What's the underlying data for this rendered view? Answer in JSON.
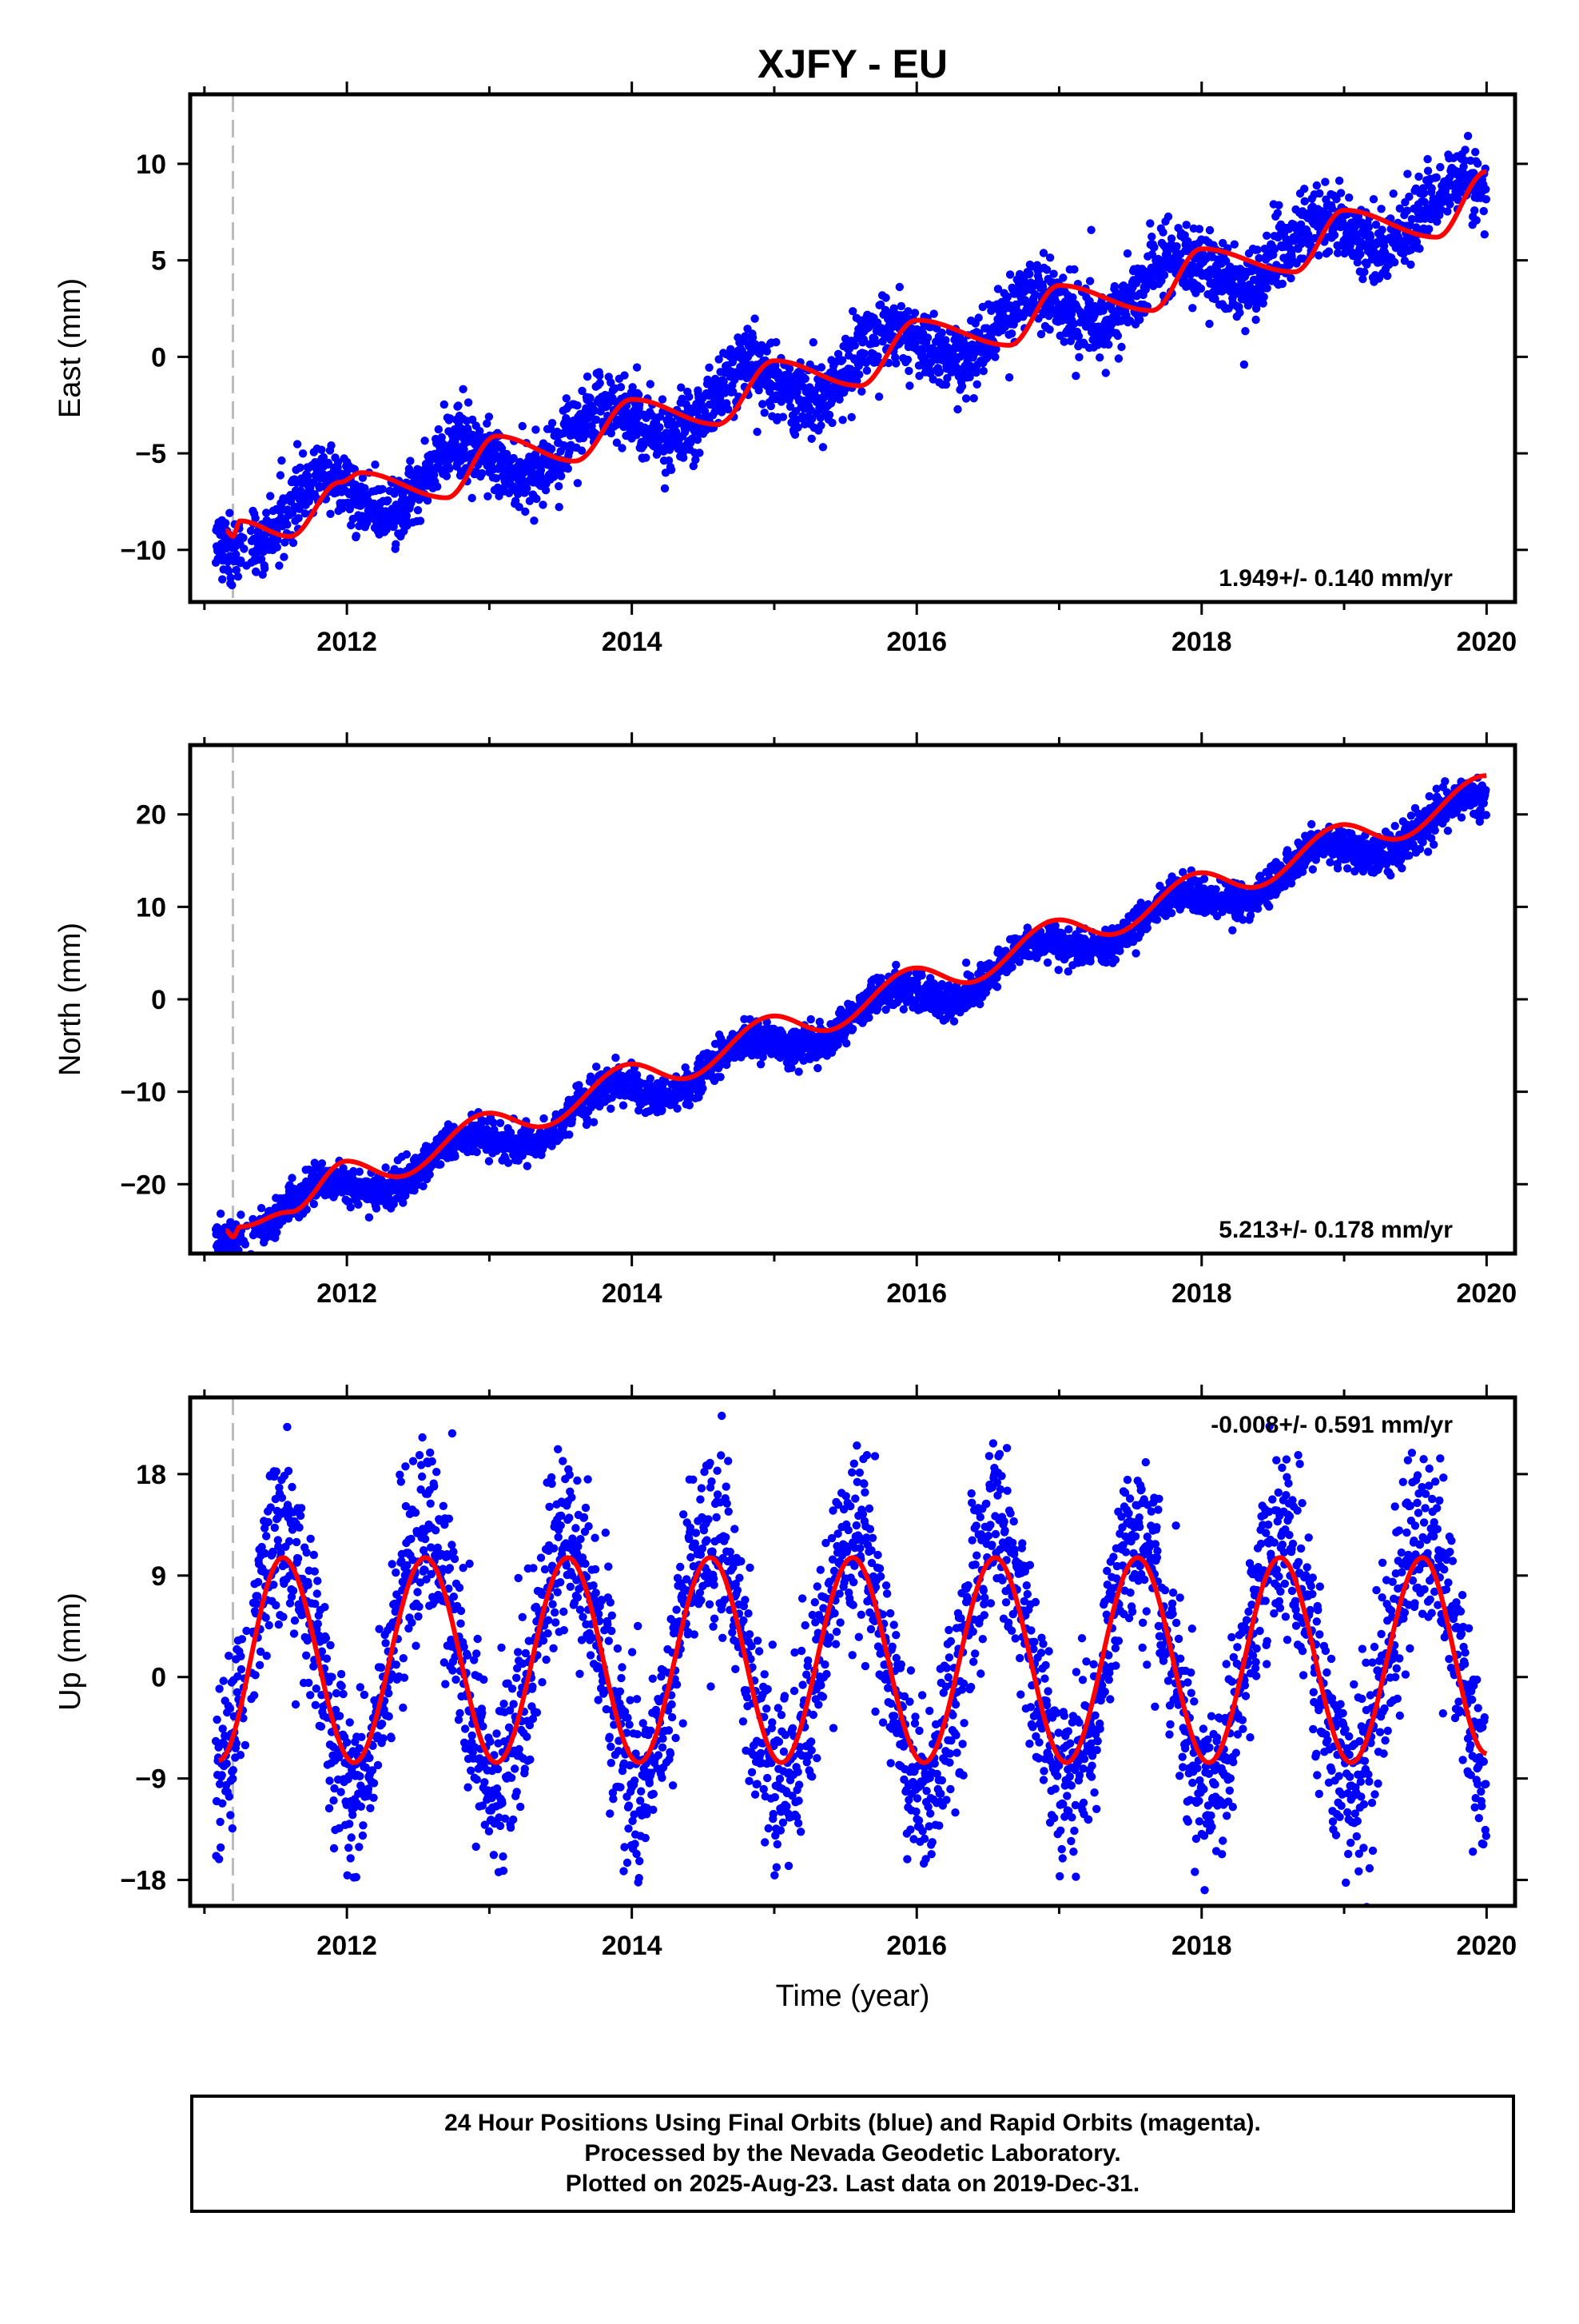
{
  "title": "XJFY - EU",
  "x_axis_title": "Time (year)",
  "footer": {
    "line1": "24 Hour Positions Using Final Orbits (blue) and Rapid Orbits (magenta).",
    "line2": "Processed by the Nevada Geodetic Laboratory.",
    "line3": "Plotted on 2025-Aug-23. Last data on 2019-Dec-31."
  },
  "colors": {
    "data": "#0000ff",
    "fit": "#ff0000",
    "equipment_change": "#bbbbbb",
    "frame": "#000000"
  },
  "chart_data": [
    {
      "type": "scatter",
      "ylabel": "East (mm)",
      "rate_label": "1.949+/- 0.140 mm/yr",
      "xlim": [
        2010.9,
        2020.2
      ],
      "ylim": [
        -12.7,
        13.6
      ],
      "xticks": [
        2012,
        2014,
        2016,
        2018,
        2020
      ],
      "yticks": [
        10,
        5,
        0,
        -5,
        -10
      ],
      "ytick_labels": [
        "10",
        "5",
        "0",
        "−5",
        "−10"
      ],
      "equipment_change_x": 2011.2,
      "fit_x": [
        2011.15,
        2011.2,
        2011.25,
        2011.6,
        2011.95,
        2012.1,
        2012.7,
        2013.05,
        2013.6,
        2014.0,
        2014.6,
        2015.0,
        2015.6,
        2016.0,
        2016.65,
        2017.0,
        2017.65,
        2018.0,
        2018.65,
        2019.0,
        2019.65,
        2020.0
      ],
      "fit_y": [
        -9.0,
        -9.3,
        -8.5,
        -9.3,
        -6.5,
        -6.0,
        -7.3,
        -4.1,
        -5.4,
        -2.2,
        -3.5,
        -0.2,
        -1.5,
        1.9,
        0.6,
        3.7,
        2.4,
        5.6,
        4.4,
        7.6,
        6.2,
        9.6
      ],
      "trend": {
        "x0": 2011.15,
        "y0": -9.0,
        "x1": 2020.0,
        "y1": 8.2
      },
      "amplitude": 1.3,
      "scatter_sd": 0.9,
      "outlier_max": 13.2
    },
    {
      "type": "scatter",
      "ylabel": "North (mm)",
      "rate_label": "5.213+/- 0.178 mm/yr",
      "xlim": [
        2010.9,
        2020.2
      ],
      "ylim": [
        -27.5,
        27.5
      ],
      "xticks": [
        2012,
        2014,
        2016,
        2018,
        2020
      ],
      "yticks": [
        20,
        10,
        0,
        -10,
        -20
      ],
      "ytick_labels": [
        "20",
        "10",
        "0",
        "−10",
        "−20"
      ],
      "equipment_change_x": 2011.2,
      "fit_x": [
        2011.15,
        2011.2,
        2011.25,
        2011.6,
        2012.0,
        2012.35,
        2013.0,
        2013.35,
        2014.0,
        2014.35,
        2015.0,
        2015.35,
        2016.0,
        2016.35,
        2017.0,
        2017.35,
        2018.0,
        2018.35,
        2019.0,
        2019.35,
        2020.0
      ],
      "fit_y": [
        -25.0,
        -25.7,
        -24.6,
        -23.0,
        -17.5,
        -19.2,
        -12.3,
        -13.8,
        -7.0,
        -8.6,
        -1.8,
        -3.4,
        3.4,
        1.8,
        8.6,
        7.0,
        13.7,
        12.1,
        18.9,
        17.3,
        24.2
      ],
      "trend": {
        "x0": 2011.15,
        "y0": -25.0,
        "x1": 2020.0,
        "y1": 21.1
      },
      "amplitude": 1.6,
      "scatter_sd": 1.0,
      "outlier_max": 25.5
    },
    {
      "type": "scatter",
      "ylabel": "Up (mm)",
      "rate_label": "-0.008+/- 0.591 mm/yr",
      "xlim": [
        2010.9,
        2020.2
      ],
      "ylim": [
        -20.3,
        24.8
      ],
      "xticks": [
        2012,
        2014,
        2016,
        2018,
        2020
      ],
      "yticks": [
        18,
        9,
        0,
        -9,
        -18
      ],
      "ytick_labels": [
        "18",
        "9",
        "0",
        "−9",
        "−18"
      ],
      "equipment_change_x": 2011.2,
      "fit_x": [
        2011.1,
        2011.55,
        2012.05,
        2012.55,
        2013.05,
        2013.55,
        2014.05,
        2014.55,
        2015.05,
        2015.55,
        2016.05,
        2016.55,
        2017.05,
        2017.55,
        2018.05,
        2018.55,
        2019.05,
        2019.55,
        2020.0
      ],
      "fit_y": [
        -7.4,
        10.6,
        -7.6,
        10.6,
        -7.6,
        10.6,
        -7.6,
        10.6,
        -7.6,
        10.6,
        -7.6,
        10.6,
        -7.6,
        10.6,
        -7.6,
        10.6,
        -7.6,
        10.6,
        -6.8
      ],
      "trend": {
        "x0": 2011.1,
        "y0": 1.5,
        "x1": 2020.0,
        "y1": 1.5
      },
      "amplitude": 9.1,
      "scatter_sd": 4.0,
      "outlier_max": 24.0
    }
  ]
}
